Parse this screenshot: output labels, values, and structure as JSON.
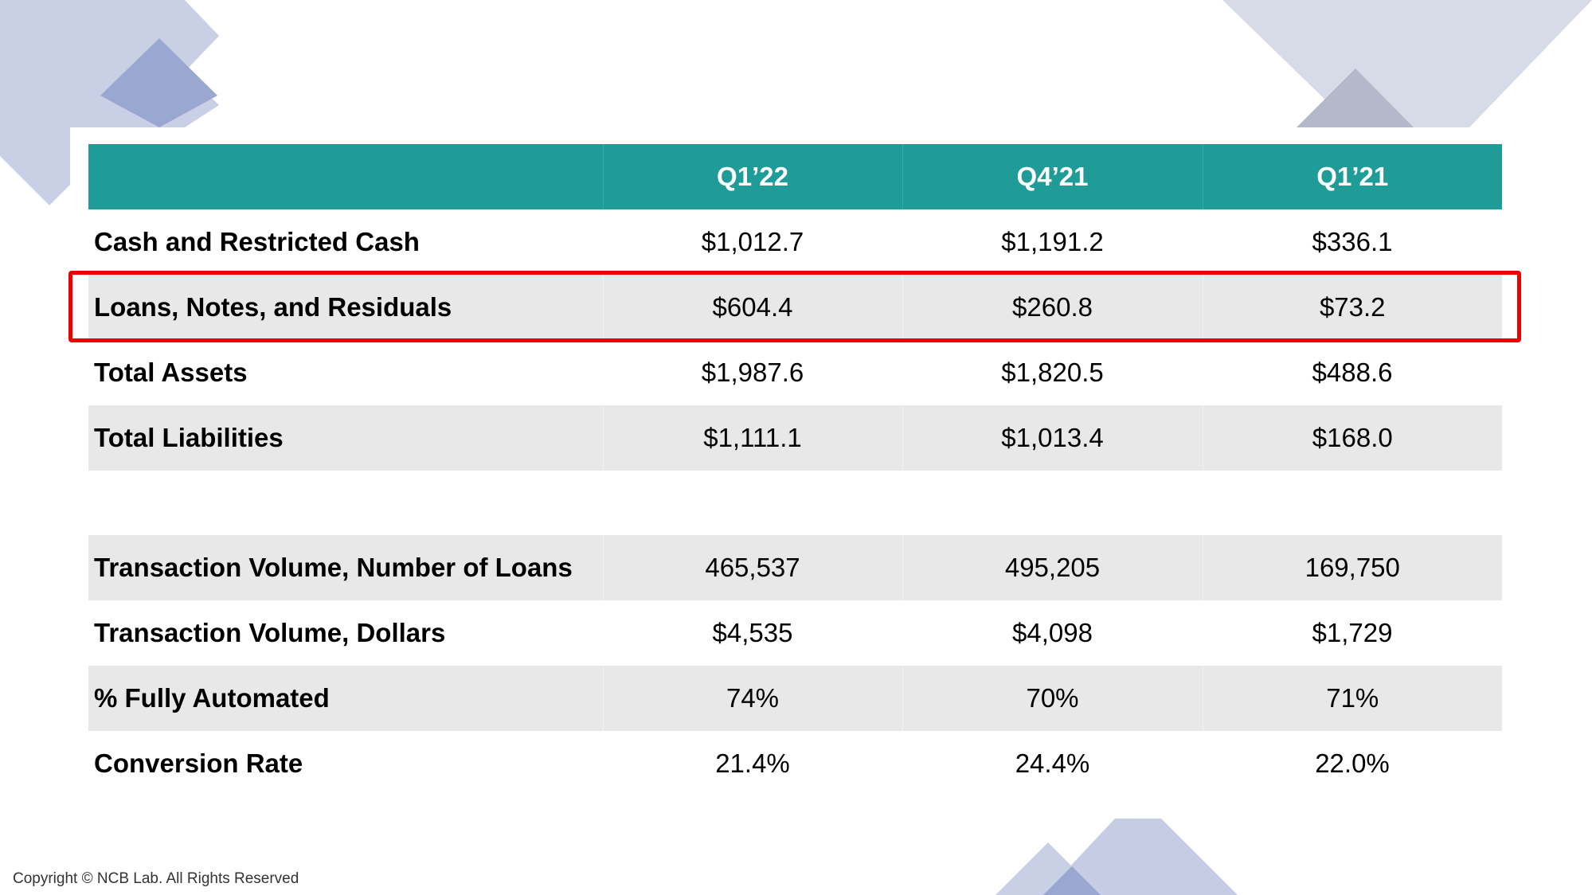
{
  "table": {
    "columns": [
      "",
      "Q1’22",
      "Q4’21",
      "Q1’21"
    ],
    "rows": [
      {
        "label": "Cash and Restricted Cash",
        "values": [
          "$1,012.7",
          "$1,191.2",
          "$336.1"
        ]
      },
      {
        "label": "Loans, Notes, and Residuals",
        "values": [
          "$604.4",
          "$260.8",
          "$73.2"
        ]
      },
      {
        "label": "Total Assets",
        "values": [
          "$1,987.6",
          "$1,820.5",
          "$488.6"
        ]
      },
      {
        "label": "Total Liabilities",
        "values": [
          "$1,111.1",
          "$1,013.4",
          "$168.0"
        ]
      },
      {
        "label": "Transaction Volume, Number of Loans",
        "values": [
          "465,537",
          "495,205",
          "169,750"
        ]
      },
      {
        "label": "Transaction Volume, Dollars",
        "values": [
          "$4,535",
          "$4,098",
          "$1,729"
        ]
      },
      {
        "label": "% Fully Automated",
        "values": [
          "74%",
          "70%",
          "71%"
        ]
      },
      {
        "label": "Conversion Rate",
        "values": [
          "21.4%",
          "24.4%",
          "22.0%"
        ]
      }
    ]
  },
  "highlighted_row": "Loans, Notes, and Residuals",
  "footer": {
    "copyright": "Copyright © NCB Lab. All Rights Reserved"
  },
  "colors": {
    "header_bg": "#1f9b98",
    "header_text": "#ffffff",
    "row_shade": "#e8e8e8",
    "highlight_border": "#ee0000",
    "decoration": "#c5cce4"
  }
}
